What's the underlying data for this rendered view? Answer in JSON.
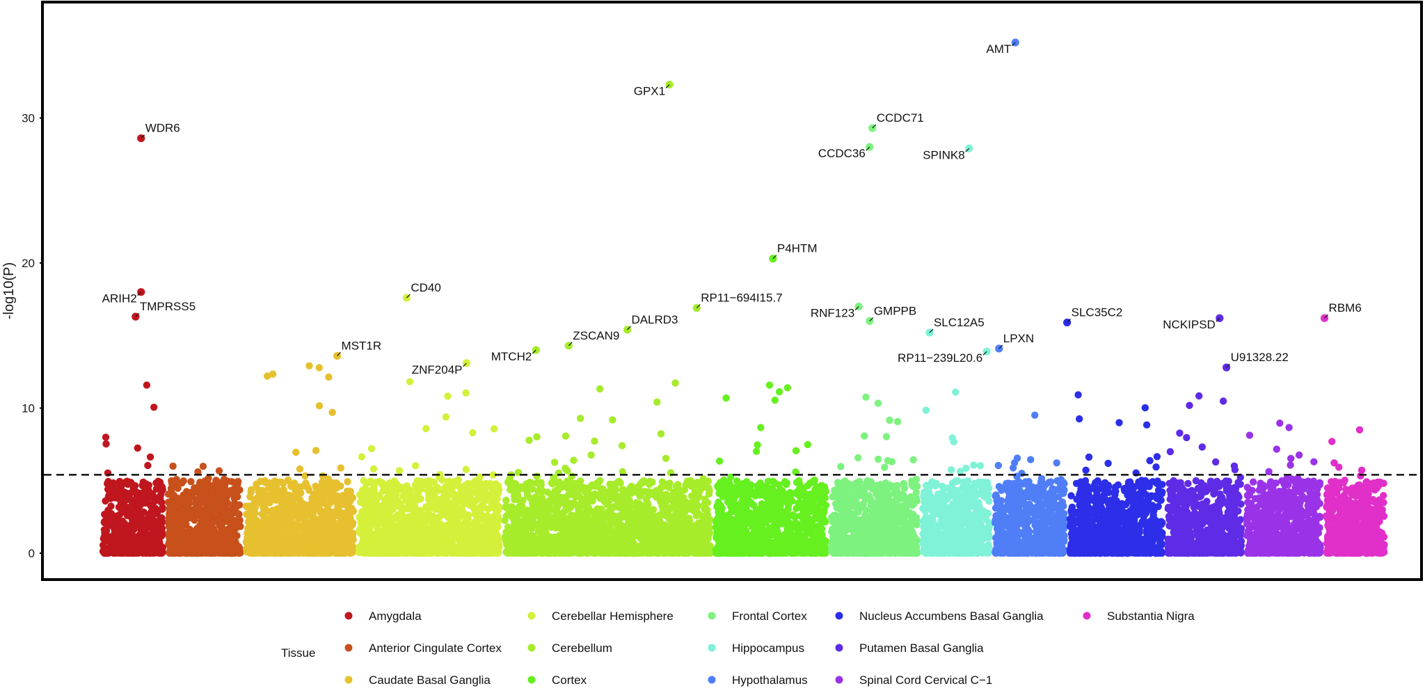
{
  "chart_data": {
    "type": "scatter",
    "subtype": "manhattan",
    "xlabel": "",
    "ylabel": "-log10(P)",
    "y_ticks": [
      "0",
      "10",
      "20",
      "30"
    ],
    "ylim": [
      -1.2,
      37.5
    ],
    "threshold": 5.4,
    "grid": false,
    "legend_title": "Tissue",
    "legend_placement": "bottom",
    "tissues": [
      {
        "name": "Amygdala",
        "color": "#C0161E",
        "range": [
          0.0,
          0.048
        ],
        "peak": 11.8,
        "seed": 11
      },
      {
        "name": "Anterior Cingulate Cortex",
        "color": "#C7501B",
        "range": [
          0.048,
          0.105
        ],
        "peak": 6.8,
        "seed": 23
      },
      {
        "name": "Caudate Basal Ganglia",
        "color": "#E6C02E",
        "range": [
          0.105,
          0.188
        ],
        "peak": 13.6,
        "seed": 37
      },
      {
        "name": "Cerebellar Hemisphere",
        "color": "#D5F03B",
        "range": [
          0.188,
          0.295
        ],
        "peak": 12.2,
        "seed": 41
      },
      {
        "name": "Cerebellum",
        "color": "#A6EC2B",
        "range": [
          0.295,
          0.45
        ],
        "peak": 12.0,
        "seed": 53
      },
      {
        "name": "Cortex",
        "color": "#66F01F",
        "range": [
          0.45,
          0.535
        ],
        "peak": 12.3,
        "seed": 67
      },
      {
        "name": "Frontal Cortex",
        "color": "#7DF27F",
        "range": [
          0.535,
          0.602
        ],
        "peak": 11.2,
        "seed": 71
      },
      {
        "name": "Hippocampus",
        "color": "#7FF2D7",
        "range": [
          0.602,
          0.655
        ],
        "peak": 12.3,
        "seed": 83
      },
      {
        "name": "Hypothalamus",
        "color": "#4F7EF7",
        "range": [
          0.655,
          0.71
        ],
        "peak": 10.0,
        "seed": 97
      },
      {
        "name": "Nucleus Accumbens Basal Ganglia",
        "color": "#2C2EE8",
        "range": [
          0.71,
          0.782
        ],
        "peak": 11.4,
        "seed": 101
      },
      {
        "name": "Putamen Basal Ganglia",
        "color": "#5E2BE6",
        "range": [
          0.782,
          0.84
        ],
        "peak": 12.0,
        "seed": 113
      },
      {
        "name": "Spinal Cord Cervical C−1",
        "color": "#9A33E8",
        "range": [
          0.84,
          0.898
        ],
        "peak": 9.7,
        "seed": 127
      },
      {
        "name": "Substantia Nigra",
        "color": "#E12FC9",
        "range": [
          0.898,
          0.945
        ],
        "peak": 9.8,
        "seed": 131
      }
    ],
    "points": [
      {
        "gene": "WDR6",
        "x": 0.03,
        "y": 28.6,
        "tissue": 0,
        "label_side": "right"
      },
      {
        "gene": "ARIH2",
        "x": 0.03,
        "y": 18.0,
        "tissue": 0,
        "label_side": "left"
      },
      {
        "gene": "TMPRSS5",
        "x": 0.026,
        "y": 16.3,
        "tissue": 0,
        "label_side": "right"
      },
      {
        "gene": "MST1R",
        "x": 0.174,
        "y": 13.6,
        "tissue": 2,
        "label_side": "right"
      },
      {
        "gene": "CD40",
        "x": 0.225,
        "y": 17.6,
        "tissue": 3,
        "label_side": "right"
      },
      {
        "gene": "ZNF204P",
        "x": 0.269,
        "y": 13.1,
        "tissue": 3,
        "label_side": "left"
      },
      {
        "gene": "MTCH2",
        "x": 0.32,
        "y": 14.0,
        "tissue": 4,
        "label_side": "left"
      },
      {
        "gene": "ZSCAN9",
        "x": 0.344,
        "y": 14.3,
        "tissue": 4,
        "label_side": "right"
      },
      {
        "gene": "DALRD3",
        "x": 0.387,
        "y": 15.4,
        "tissue": 4,
        "label_side": "right"
      },
      {
        "gene": "GPX1",
        "x": 0.418,
        "y": 32.3,
        "tissue": 4,
        "label_side": "left"
      },
      {
        "gene": "RP11−694I15.7",
        "x": 0.438,
        "y": 16.9,
        "tissue": 4,
        "label_side": "right"
      },
      {
        "gene": "P4HTM",
        "x": 0.494,
        "y": 20.3,
        "tissue": 5,
        "label_side": "right"
      },
      {
        "gene": "RNF123",
        "x": 0.557,
        "y": 17.0,
        "tissue": 6,
        "label_side": "left"
      },
      {
        "gene": "GMPPB",
        "x": 0.565,
        "y": 16.0,
        "tissue": 6,
        "label_side": "right"
      },
      {
        "gene": "CCDC71",
        "x": 0.567,
        "y": 29.3,
        "tissue": 6,
        "label_side": "right"
      },
      {
        "gene": "CCDC36",
        "x": 0.565,
        "y": 28.0,
        "tissue": 6,
        "label_side": "left"
      },
      {
        "gene": "SLC12A5",
        "x": 0.609,
        "y": 15.2,
        "tissue": 7,
        "label_side": "right"
      },
      {
        "gene": "SPINK8",
        "x": 0.638,
        "y": 27.9,
        "tissue": 7,
        "label_side": "left"
      },
      {
        "gene": "RP11−239L20.6",
        "x": 0.651,
        "y": 13.9,
        "tissue": 7,
        "label_side": "left"
      },
      {
        "gene": "LPXN",
        "x": 0.66,
        "y": 14.1,
        "tissue": 8,
        "label_side": "right"
      },
      {
        "gene": "AMT",
        "x": 0.672,
        "y": 35.2,
        "tissue": 8,
        "label_side": "left"
      },
      {
        "gene": "SLC35C2",
        "x": 0.71,
        "y": 15.9,
        "tissue": 9,
        "label_side": "right"
      },
      {
        "gene": "NCKIPSD",
        "x": 0.822,
        "y": 16.2,
        "tissue": 10,
        "label_side": "left"
      },
      {
        "gene": "U91328.22",
        "x": 0.827,
        "y": 12.8,
        "tissue": 10,
        "label_side": "right"
      },
      {
        "gene": "RBM6",
        "x": 0.899,
        "y": 16.2,
        "tissue": 12,
        "label_side": "right"
      }
    ]
  }
}
